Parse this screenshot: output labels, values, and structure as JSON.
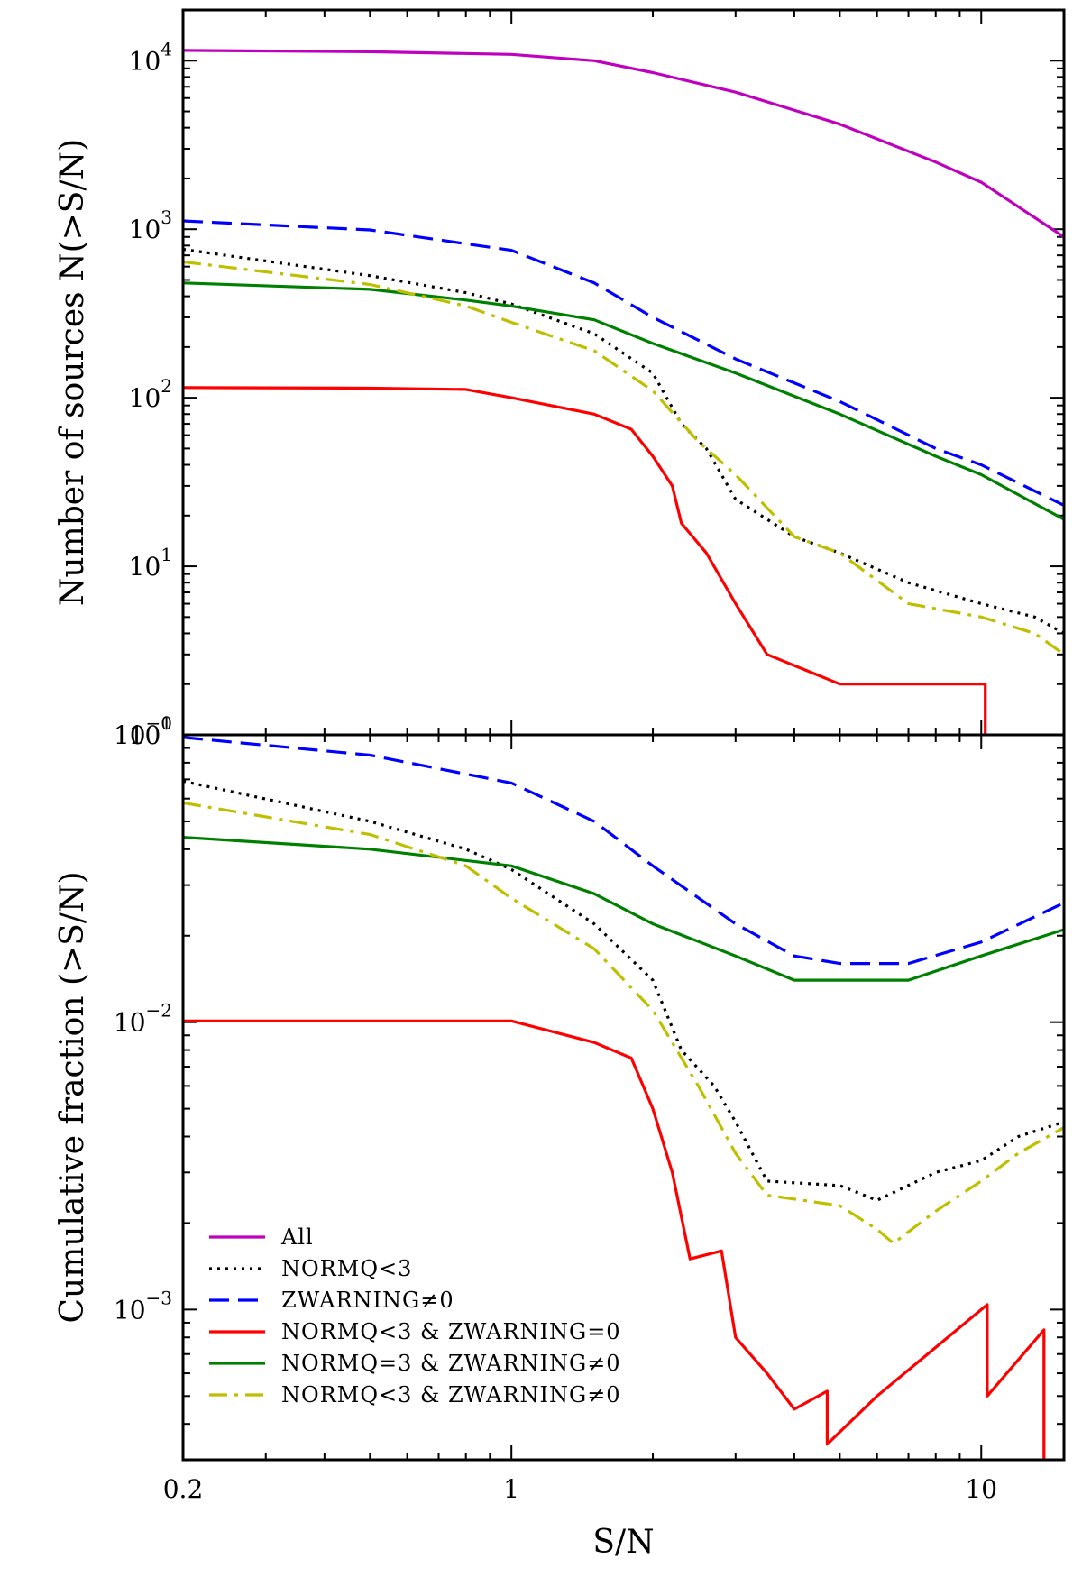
{
  "chart_data": [
    {
      "type": "line",
      "panel": "top",
      "ylabel": "Number of sources N(>S/N)",
      "x_scale": "log",
      "y_scale": "log",
      "xlim": [
        0.2,
        15
      ],
      "ylim": [
        1,
        20000
      ],
      "y_ticks": [
        {
          "value": 10000,
          "base": "10",
          "exp": "4"
        },
        {
          "value": 1000,
          "base": "10",
          "exp": "3"
        },
        {
          "value": 100,
          "base": "10",
          "exp": "2"
        },
        {
          "value": 10,
          "base": "10",
          "exp": "1"
        },
        {
          "value": 1,
          "base": "10",
          "exp": "0"
        }
      ],
      "series": [
        {
          "name": "All",
          "color": "#bf00bf",
          "dash": "solid",
          "points": [
            [
              0.2,
              11500
            ],
            [
              0.5,
              11300
            ],
            [
              1.0,
              10900
            ],
            [
              1.5,
              10000
            ],
            [
              2.0,
              8500
            ],
            [
              3.0,
              6500
            ],
            [
              5.0,
              4200
            ],
            [
              8.0,
              2500
            ],
            [
              10.0,
              1900
            ],
            [
              15.0,
              900
            ]
          ]
        },
        {
          "name": "NORMQ<3",
          "color": "#000000",
          "dash": "dotted",
          "points": [
            [
              0.2,
              760
            ],
            [
              0.5,
              530
            ],
            [
              0.8,
              420
            ],
            [
              1.0,
              360
            ],
            [
              1.5,
              240
            ],
            [
              2.0,
              140
            ],
            [
              2.3,
              70
            ],
            [
              2.6,
              50
            ],
            [
              3.0,
              25
            ],
            [
              4.0,
              15
            ],
            [
              5.0,
              12
            ],
            [
              7.0,
              8
            ],
            [
              10.0,
              6
            ],
            [
              13.0,
              5
            ],
            [
              15.0,
              4
            ]
          ]
        },
        {
          "name": "ZWARNING≠0",
          "color": "#0000ff",
          "dash": "dashed",
          "points": [
            [
              0.2,
              1120
            ],
            [
              0.5,
              990
            ],
            [
              1.0,
              750
            ],
            [
              1.5,
              480
            ],
            [
              2.0,
              300
            ],
            [
              3.0,
              170
            ],
            [
              5.0,
              95
            ],
            [
              8.0,
              50
            ],
            [
              10.0,
              40
            ],
            [
              15.0,
              23
            ]
          ]
        },
        {
          "name": "NORMQ<3 & ZWARNING=0",
          "color": "#ff0000",
          "dash": "solid",
          "points": [
            [
              0.2,
              115
            ],
            [
              0.5,
              114
            ],
            [
              0.8,
              112
            ],
            [
              1.0,
              100
            ],
            [
              1.5,
              80
            ],
            [
              1.8,
              65
            ],
            [
              2.0,
              45
            ],
            [
              2.2,
              30
            ],
            [
              2.3,
              18
            ],
            [
              2.6,
              12
            ],
            [
              3.0,
              6
            ],
            [
              3.5,
              3
            ],
            [
              5.0,
              2
            ],
            [
              10.2,
              2
            ],
            [
              10.2,
              1
            ]
          ]
        },
        {
          "name": "NORMQ=3 & ZWARNING≠0",
          "color": "#008000",
          "dash": "solid",
          "points": [
            [
              0.2,
              480
            ],
            [
              0.5,
              440
            ],
            [
              0.8,
              380
            ],
            [
              1.0,
              350
            ],
            [
              1.5,
              290
            ],
            [
              2.0,
              210
            ],
            [
              3.0,
              140
            ],
            [
              5.0,
              80
            ],
            [
              8.0,
              45
            ],
            [
              10.0,
              35
            ],
            [
              15.0,
              19
            ]
          ]
        },
        {
          "name": "NORMQ<3 & ZWARNING≠0",
          "color": "#bfbf00",
          "dash": "dashdot",
          "points": [
            [
              0.2,
              640
            ],
            [
              0.5,
              470
            ],
            [
              0.8,
              350
            ],
            [
              1.0,
              280
            ],
            [
              1.5,
              190
            ],
            [
              2.0,
              110
            ],
            [
              2.5,
              55
            ],
            [
              3.0,
              35
            ],
            [
              4.0,
              15
            ],
            [
              5.0,
              12
            ],
            [
              7.0,
              6
            ],
            [
              10.0,
              5
            ],
            [
              13.0,
              4
            ],
            [
              15.0,
              3
            ]
          ]
        }
      ]
    },
    {
      "type": "line",
      "panel": "bottom",
      "ylabel": "Cumulative fraction (>S/N)",
      "xlabel": "S/N",
      "x_scale": "log",
      "y_scale": "log",
      "xlim": [
        0.2,
        15
      ],
      "ylim": [
        0.0003,
        0.1
      ],
      "x_ticks": [
        {
          "value": 0.2,
          "label": "0.2"
        },
        {
          "value": 1,
          "label": "1"
        },
        {
          "value": 10,
          "label": "10"
        }
      ],
      "y_ticks": [
        {
          "value": 0.1,
          "base": "10",
          "exp": "−1"
        },
        {
          "value": 0.01,
          "base": "10",
          "exp": "−2"
        },
        {
          "value": 0.001,
          "base": "10",
          "exp": "−3"
        }
      ],
      "series": [
        {
          "name": "NORMQ<3",
          "color": "#000000",
          "dash": "dotted",
          "points": [
            [
              0.2,
              0.069
            ],
            [
              0.5,
              0.05
            ],
            [
              0.8,
              0.04
            ],
            [
              1.0,
              0.034
            ],
            [
              1.5,
              0.022
            ],
            [
              2.0,
              0.014
            ],
            [
              2.3,
              0.008
            ],
            [
              2.7,
              0.006
            ],
            [
              3.0,
              0.0045
            ],
            [
              3.5,
              0.0028
            ],
            [
              5.0,
              0.0027
            ],
            [
              6.0,
              0.0024
            ],
            [
              8.0,
              0.003
            ],
            [
              10.0,
              0.0033
            ],
            [
              12.0,
              0.004
            ],
            [
              15.0,
              0.0045
            ]
          ]
        },
        {
          "name": "ZWARNING≠0",
          "color": "#0000ff",
          "dash": "dashed",
          "points": [
            [
              0.2,
              0.098
            ],
            [
              0.5,
              0.085
            ],
            [
              1.0,
              0.068
            ],
            [
              1.5,
              0.05
            ],
            [
              2.0,
              0.035
            ],
            [
              3.0,
              0.022
            ],
            [
              4.0,
              0.017
            ],
            [
              5.0,
              0.016
            ],
            [
              7.0,
              0.016
            ],
            [
              10.0,
              0.019
            ],
            [
              15.0,
              0.026
            ]
          ]
        },
        {
          "name": "NORMQ<3 & ZWARNING=0",
          "color": "#ff0000",
          "dash": "solid",
          "points": [
            [
              0.2,
              0.0101
            ],
            [
              0.5,
              0.0101
            ],
            [
              1.0,
              0.0101
            ],
            [
              1.5,
              0.0085
            ],
            [
              1.8,
              0.0075
            ],
            [
              2.0,
              0.005
            ],
            [
              2.2,
              0.003
            ],
            [
              2.4,
              0.0015
            ],
            [
              2.8,
              0.0016
            ],
            [
              3.0,
              0.0008
            ],
            [
              3.5,
              0.0006
            ],
            [
              4.0,
              0.00045
            ],
            [
              4.7,
              0.00052
            ],
            [
              4.7,
              0.00034
            ],
            [
              6.0,
              0.0005
            ],
            [
              10.3,
              0.00104
            ],
            [
              10.3,
              0.0005
            ],
            [
              13.6,
              0.00085
            ],
            [
              13.6,
              0.0003
            ]
          ]
        },
        {
          "name": "NORMQ=3 & ZWARNING≠0",
          "color": "#008000",
          "dash": "solid",
          "points": [
            [
              0.2,
              0.044
            ],
            [
              0.5,
              0.04
            ],
            [
              1.0,
              0.035
            ],
            [
              1.5,
              0.028
            ],
            [
              2.0,
              0.022
            ],
            [
              3.0,
              0.017
            ],
            [
              4.0,
              0.014
            ],
            [
              5.0,
              0.014
            ],
            [
              7.0,
              0.014
            ],
            [
              10.0,
              0.017
            ],
            [
              15.0,
              0.021
            ]
          ]
        },
        {
          "name": "NORMQ<3 & ZWARNING≠0",
          "color": "#bfbf00",
          "dash": "dashdot",
          "points": [
            [
              0.2,
              0.058
            ],
            [
              0.5,
              0.045
            ],
            [
              0.8,
              0.035
            ],
            [
              1.0,
              0.027
            ],
            [
              1.5,
              0.018
            ],
            [
              2.0,
              0.011
            ],
            [
              2.5,
              0.006
            ],
            [
              3.0,
              0.0035
            ],
            [
              3.5,
              0.0025
            ],
            [
              5.0,
              0.0023
            ],
            [
              6.0,
              0.0019
            ],
            [
              6.5,
              0.0017
            ],
            [
              8.0,
              0.0022
            ],
            [
              10.0,
              0.0028
            ],
            [
              12.0,
              0.0035
            ],
            [
              15.0,
              0.0043
            ]
          ]
        }
      ]
    }
  ],
  "legend": {
    "placement": "lower-left",
    "entries": [
      {
        "label": "All",
        "color": "#bf00bf",
        "dash": "solid"
      },
      {
        "label": "NORMQ<3",
        "color": "#000000",
        "dash": "dotted"
      },
      {
        "label": "ZWARNING≠0",
        "color": "#0000ff",
        "dash": "dashed"
      },
      {
        "label": "NORMQ<3 & ZWARNING=0",
        "color": "#ff0000",
        "dash": "solid"
      },
      {
        "label": "NORMQ=3 & ZWARNING≠0",
        "color": "#008000",
        "dash": "solid"
      },
      {
        "label": "NORMQ<3 & ZWARNING≠0",
        "color": "#bfbf00",
        "dash": "dashdot"
      }
    ]
  }
}
